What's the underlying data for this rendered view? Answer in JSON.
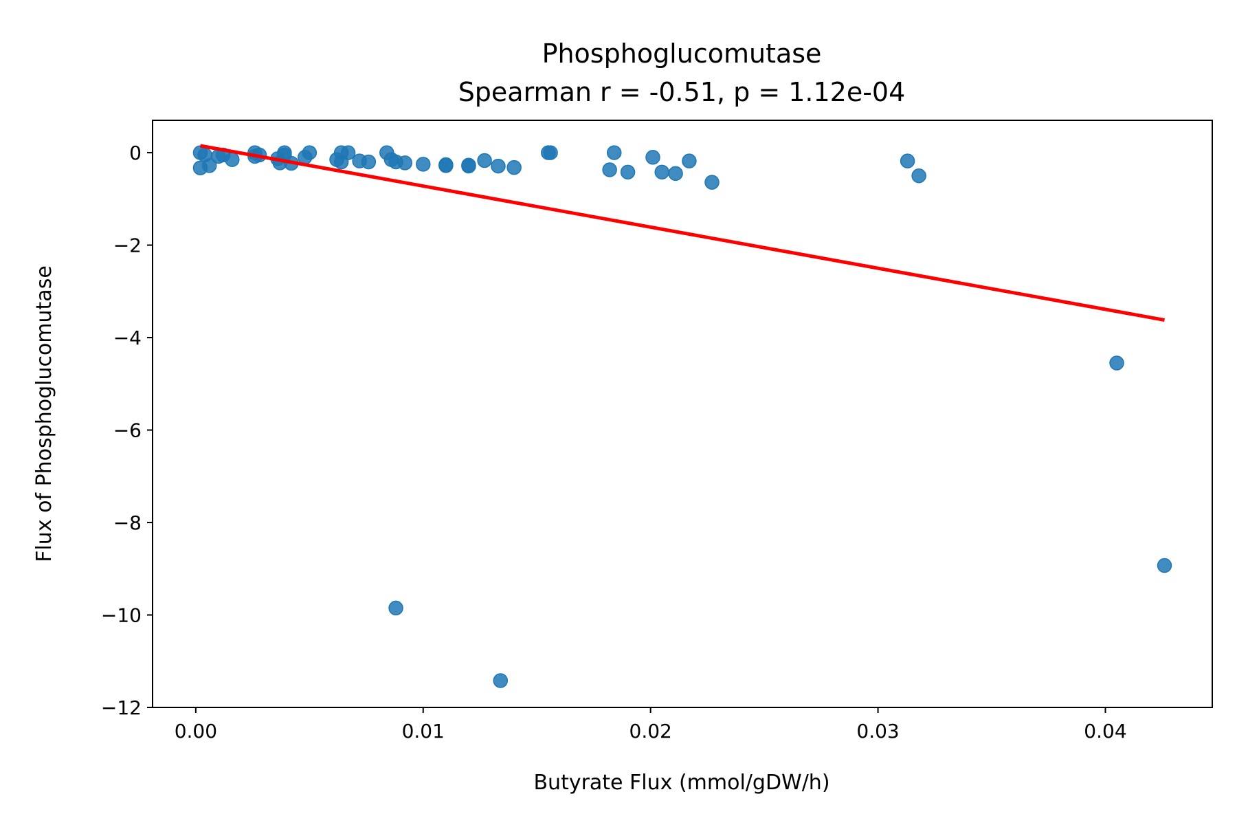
{
  "chart_data": {
    "type": "scatter",
    "title": "Phosphoglucomutase",
    "subtitle": "Spearman r = -0.51, p = 1.12e-04",
    "xlabel": "Butyrate Flux (mmol/gDW/h)",
    "ylabel": "Flux of Phosphoglucomutase",
    "xlim": [
      -0.0019,
      0.0447
    ],
    "ylim": [
      -12,
      0.7
    ],
    "xticks": [
      0.0,
      0.01,
      0.02,
      0.03,
      0.04
    ],
    "xtick_labels": [
      "0.00",
      "0.01",
      "0.02",
      "0.03",
      "0.04"
    ],
    "yticks": [
      0,
      -2,
      -4,
      -6,
      -8,
      -10,
      -12
    ],
    "ytick_labels": [
      "0",
      "−2",
      "−4",
      "−6",
      "−8",
      "−10",
      "−12"
    ],
    "grid": false,
    "point_color": "#1f77b4",
    "line_color": "#ff0000",
    "points": [
      {
        "x": 0.0002,
        "y": 0.0
      },
      {
        "x": 0.0004,
        "y": -0.05
      },
      {
        "x": 0.0002,
        "y": -0.33
      },
      {
        "x": 0.0006,
        "y": -0.28
      },
      {
        "x": 0.001,
        "y": -0.08
      },
      {
        "x": 0.0012,
        "y": -0.05
      },
      {
        "x": 0.0016,
        "y": -0.15
      },
      {
        "x": 0.0026,
        "y": 0.0
      },
      {
        "x": 0.0028,
        "y": -0.05
      },
      {
        "x": 0.0026,
        "y": -0.08
      },
      {
        "x": 0.0036,
        "y": -0.13
      },
      {
        "x": 0.0037,
        "y": -0.22
      },
      {
        "x": 0.0039,
        "y": -0.05
      },
      {
        "x": 0.0039,
        "y": 0.0
      },
      {
        "x": 0.0042,
        "y": -0.23
      },
      {
        "x": 0.0048,
        "y": -0.1
      },
      {
        "x": 0.005,
        "y": 0.0
      },
      {
        "x": 0.0062,
        "y": -0.15
      },
      {
        "x": 0.0064,
        "y": -0.2
      },
      {
        "x": 0.0064,
        "y": 0.0
      },
      {
        "x": 0.0067,
        "y": 0.0
      },
      {
        "x": 0.0072,
        "y": -0.18
      },
      {
        "x": 0.0076,
        "y": -0.2
      },
      {
        "x": 0.0084,
        "y": 0.0
      },
      {
        "x": 0.0086,
        "y": -0.15
      },
      {
        "x": 0.0088,
        "y": -0.2
      },
      {
        "x": 0.0092,
        "y": -0.22
      },
      {
        "x": 0.01,
        "y": -0.25
      },
      {
        "x": 0.011,
        "y": -0.26
      },
      {
        "x": 0.011,
        "y": -0.28
      },
      {
        "x": 0.012,
        "y": -0.27
      },
      {
        "x": 0.012,
        "y": -0.29
      },
      {
        "x": 0.0127,
        "y": -0.17
      },
      {
        "x": 0.0133,
        "y": -0.29
      },
      {
        "x": 0.014,
        "y": -0.32
      },
      {
        "x": 0.0155,
        "y": 0.0
      },
      {
        "x": 0.0156,
        "y": 0.0
      },
      {
        "x": 0.0182,
        "y": -0.37
      },
      {
        "x": 0.0184,
        "y": 0.0
      },
      {
        "x": 0.019,
        "y": -0.42
      },
      {
        "x": 0.0201,
        "y": -0.1
      },
      {
        "x": 0.0205,
        "y": -0.42
      },
      {
        "x": 0.0211,
        "y": -0.45
      },
      {
        "x": 0.0217,
        "y": -0.18
      },
      {
        "x": 0.0227,
        "y": -0.64
      },
      {
        "x": 0.0313,
        "y": -0.18
      },
      {
        "x": 0.0318,
        "y": -0.5
      },
      {
        "x": 0.0405,
        "y": -4.55
      },
      {
        "x": 0.0426,
        "y": -8.93
      },
      {
        "x": 0.0088,
        "y": -9.85
      },
      {
        "x": 0.0134,
        "y": -11.42
      }
    ],
    "fit_line": {
      "x": [
        0.0002,
        0.0426
      ],
      "y": [
        0.15,
        -3.62
      ]
    }
  }
}
